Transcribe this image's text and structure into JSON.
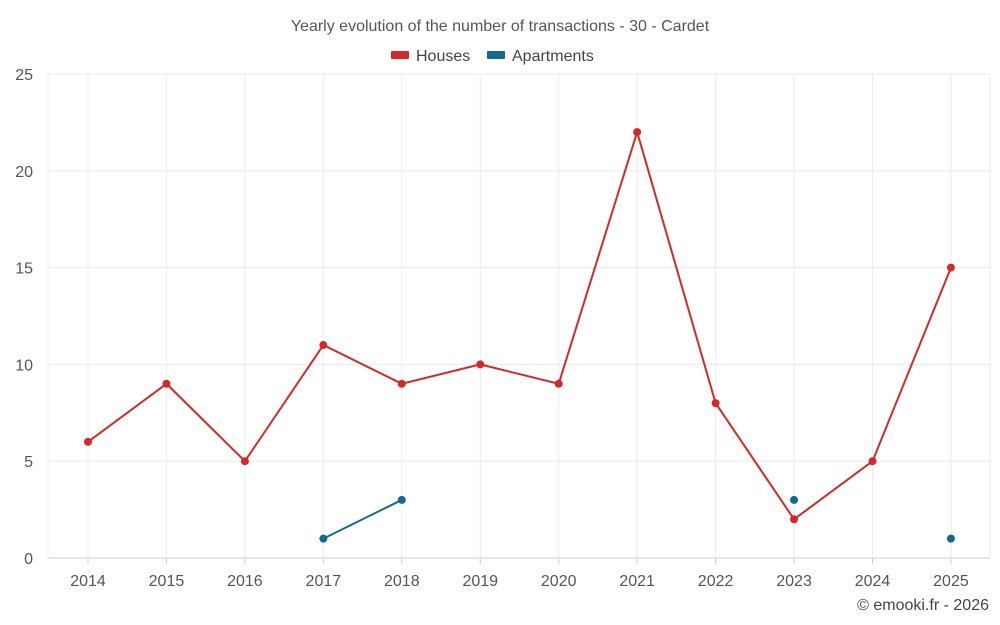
{
  "chart_data": {
    "type": "line",
    "title": "Yearly evolution of the number of transactions - 30 - Cardet",
    "xlabel": "",
    "ylabel": "",
    "categories": [
      "2014",
      "2015",
      "2016",
      "2017",
      "2018",
      "2019",
      "2020",
      "2021",
      "2022",
      "2023",
      "2024",
      "2025"
    ],
    "ylim": [
      0,
      25
    ],
    "yticks": [
      0,
      5,
      10,
      15,
      20,
      25
    ],
    "grid": true,
    "legend_position": "top-center",
    "series": [
      {
        "name": "Houses",
        "color": "#d12a2a",
        "values": [
          6,
          9,
          5,
          11,
          9,
          10,
          9,
          22,
          8,
          2,
          5,
          15
        ]
      },
      {
        "name": "Apartments",
        "color": "#15688f",
        "values": [
          null,
          null,
          null,
          1,
          3,
          null,
          null,
          null,
          null,
          3,
          null,
          1
        ]
      }
    ]
  },
  "credit": "© emooki.fr - 2026"
}
